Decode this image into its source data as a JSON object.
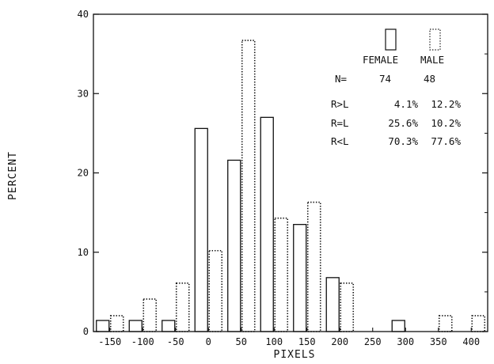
{
  "chart_data": {
    "type": "bar",
    "xlabel": "PIXELS",
    "ylabel": "PERCENT",
    "xlim": [
      -175,
      425
    ],
    "ylim": [
      0,
      40
    ],
    "x_ticks": [
      -150,
      -100,
      -50,
      0,
      50,
      100,
      150,
      200,
      250,
      300,
      350,
      400
    ],
    "y_ticks": [
      0,
      10,
      20,
      30,
      40
    ],
    "series": [
      {
        "name": "FEMALE",
        "style": "solid",
        "x": [
          -150,
          -100,
          -50,
          0,
          50,
          100,
          150,
          200,
          250,
          300,
          350,
          400
        ],
        "values": [
          1.4,
          1.4,
          1.4,
          25.6,
          21.6,
          27.0,
          13.5,
          6.8,
          0,
          1.4,
          0,
          0
        ]
      },
      {
        "name": "MALE",
        "style": "dotted",
        "x": [
          -150,
          -100,
          -50,
          0,
          50,
          100,
          150,
          200,
          250,
          300,
          350,
          400
        ],
        "values": [
          2.0,
          4.1,
          6.1,
          10.2,
          36.7,
          14.3,
          16.3,
          6.1,
          0,
          0,
          2.0,
          2.0
        ]
      }
    ],
    "legend": {
      "position": "top-right",
      "female_label": "FEMALE",
      "male_label": "MALE"
    },
    "stats_table": {
      "n_label": "N=",
      "n_female": "74",
      "n_male": "48",
      "rows": [
        {
          "label": "R>L",
          "female": "4.1%",
          "male": "12.2%"
        },
        {
          "label": "R=L",
          "female": "25.6%",
          "male": "10.2%"
        },
        {
          "label": "R<L",
          "female": "70.3%",
          "male": "77.6%"
        }
      ]
    },
    "colors": {
      "ink": "#111111",
      "background": "#ffffff"
    }
  }
}
